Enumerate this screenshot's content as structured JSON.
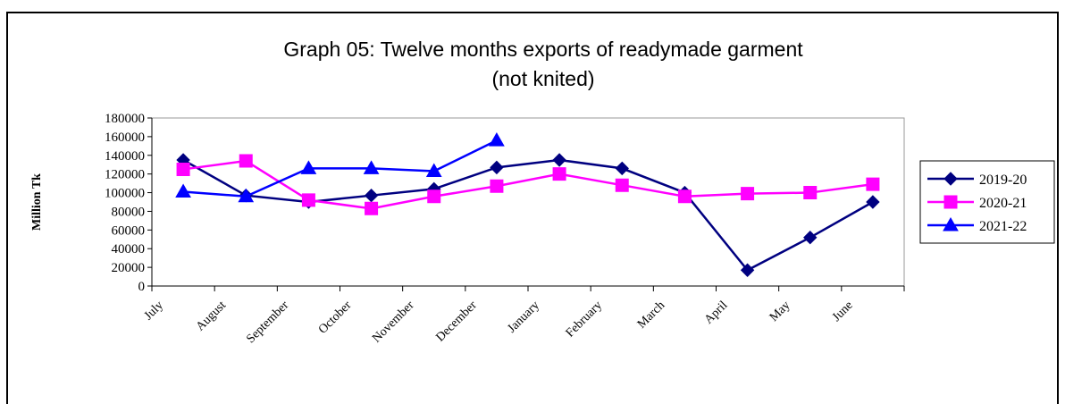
{
  "chart_data": {
    "type": "line",
    "title": [
      "Graph 05: Twelve months exports of readymade garment",
      "(not knited)"
    ],
    "y_label": "Million Tk",
    "categories": [
      "July",
      "August",
      "September",
      "October",
      "November",
      "December",
      "January",
      "February",
      "March",
      "April",
      "May",
      "June"
    ],
    "series": [
      {
        "name": "2019-20",
        "color": "#000080",
        "marker": "diamond",
        "values": [
          135000,
          97000,
          90000,
          97000,
          104000,
          127000,
          135000,
          126000,
          100000,
          17000,
          52000,
          90000
        ]
      },
      {
        "name": "2020-21",
        "color": "#ff00ff",
        "marker": "square",
        "values": [
          125000,
          134000,
          92000,
          83000,
          96000,
          107000,
          120000,
          108000,
          96000,
          99000,
          100000,
          109000
        ]
      },
      {
        "name": "2021-22",
        "color": "#0000ff",
        "marker": "triangle",
        "values": [
          101000,
          96000,
          126000,
          126000,
          123000,
          156000,
          null,
          null,
          null,
          null,
          null,
          null
        ]
      }
    ],
    "ylim": [
      0,
      180000
    ],
    "yticks": [
      0,
      20000,
      40000,
      60000,
      80000,
      100000,
      120000,
      140000,
      160000,
      180000
    ],
    "grid": false,
    "legend": "right"
  }
}
